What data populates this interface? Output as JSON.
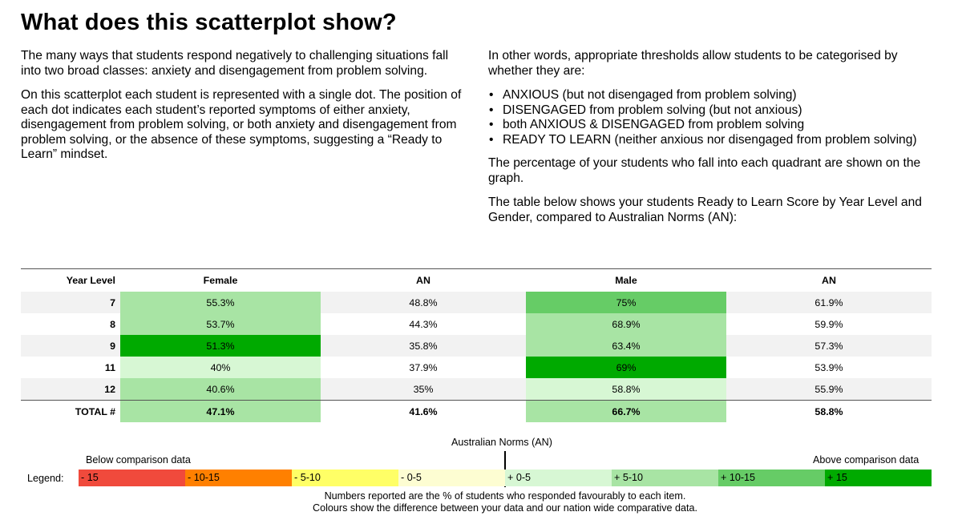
{
  "title": "What does this scatterplot show?",
  "left_column": {
    "paragraphs": [
      "The many ways that students respond negatively to challenging situations fall into two broad classes: anxiety and disengagement from problem solving.",
      "On this scatterplot each student is represented with a single dot. The position of each dot indicates each student’s reported symptoms of either anxiety, disengagement from problem solving, or both anxiety and disengagement from problem solving, or the absence of these symptoms, suggesting a “Ready to Learn” mindset."
    ]
  },
  "right_column": {
    "intro": "In other words, appropriate thresholds allow students to be categorised by whether they are:",
    "bullets": [
      "ANXIOUS (but not disengaged from problem solving)",
      "DISENGAGED from problem solving (but not anxious)",
      "both ANXIOUS & DISENGAGED from problem solving",
      "READY TO LEARN (neither anxious nor disengaged from problem solving)"
    ],
    "para2": "The percentage of your students who fall into each quadrant are shown on the graph.",
    "para3": "The table below shows your students Ready to Learn Score by Year Level and Gender, compared to Australian Norms (AN):"
  },
  "table": {
    "headers": [
      "Year Level",
      "Female",
      "AN",
      "Male",
      "AN"
    ],
    "rows": [
      {
        "year": "7",
        "female": "55.3%",
        "female_color": "#a8e4a4",
        "an_f": "48.8%",
        "male": "75%",
        "male_color": "#66cc66",
        "an_m": "61.9%"
      },
      {
        "year": "8",
        "female": "53.7%",
        "female_color": "#a8e4a4",
        "an_f": "44.3%",
        "male": "68.9%",
        "male_color": "#a8e4a4",
        "an_m": "59.9%"
      },
      {
        "year": "9",
        "female": "51.3%",
        "female_color": "#00aa00",
        "an_f": "35.8%",
        "male": "63.4%",
        "male_color": "#a8e4a4",
        "an_m": "57.3%"
      },
      {
        "year": "11",
        "female": "40%",
        "female_color": "#d7f7d4",
        "an_f": "37.9%",
        "male": "69%",
        "male_color": "#00aa00",
        "an_m": "53.9%"
      },
      {
        "year": "12",
        "female": "40.6%",
        "female_color": "#a8e4a4",
        "an_f": "35%",
        "male": "58.8%",
        "male_color": "#d7f7d4",
        "an_m": "55.9%"
      }
    ],
    "total": {
      "label": "TOTAL #",
      "female": "47.1%",
      "female_color": "#a8e4a4",
      "an_f": "41.6%",
      "male": "66.7%",
      "male_color": "#a8e4a4",
      "an_m": "58.8%"
    }
  },
  "legend": {
    "an_label": "Australian Norms (AN)",
    "below_label": "Below comparison data",
    "above_label": "Above comparison data",
    "label": "Legend:",
    "segments": [
      {
        "text": "- 15",
        "color": "#f04a3c"
      },
      {
        "text": "- 10-15",
        "color": "#ff8000"
      },
      {
        "text": "- 5-10",
        "color": "#ffff66"
      },
      {
        "text": "- 0-5",
        "color": "#fdfdd2"
      },
      {
        "text": "+ 0-5",
        "color": "#d7f7d4"
      },
      {
        "text": "+ 5-10",
        "color": "#a8e4a4"
      },
      {
        "text": "+ 10-15",
        "color": "#66cc66"
      },
      {
        "text": "+ 15",
        "color": "#00aa00"
      }
    ],
    "note_line1": "Numbers reported are the % of students who responded favourably to each item.",
    "note_line2": "Colours show the difference between your data and our nation wide comparative data."
  }
}
